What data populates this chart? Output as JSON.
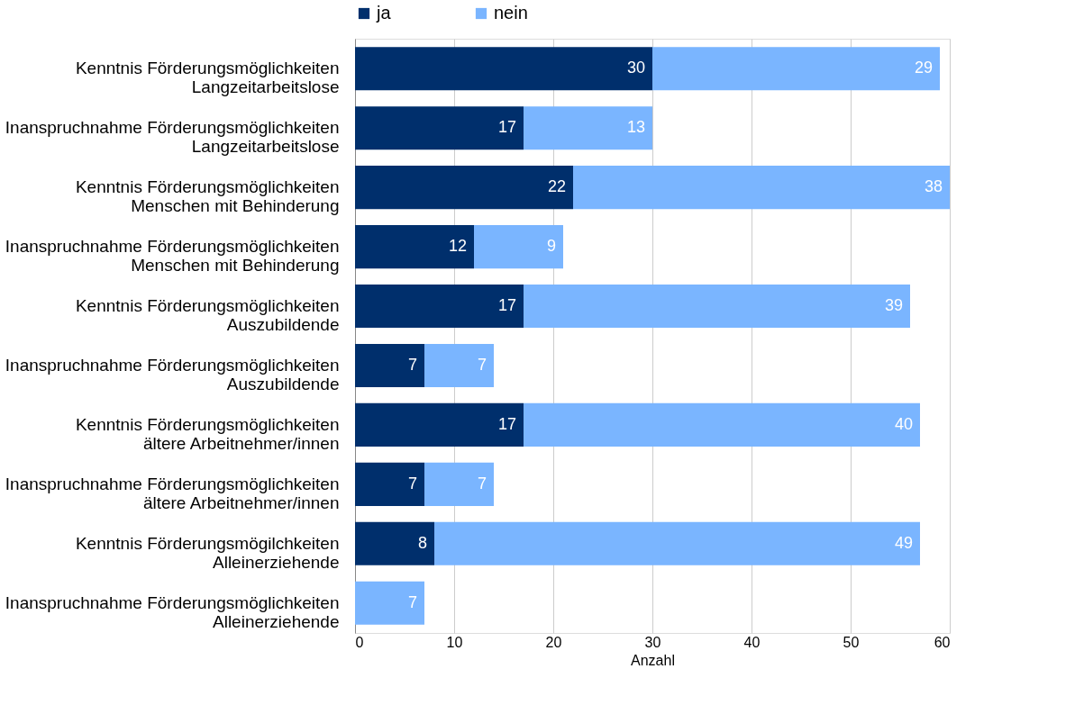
{
  "chart_data": {
    "type": "bar",
    "orientation": "horizontal",
    "stacked": true,
    "xlabel": "Anzahl",
    "categories": [
      "Kenntnis Förderungsmöglichkeiten\nLangzeitarbeitslose",
      "Inanspruchnahme Förderungsmöglichkeiten\nLangzeitarbeitslose",
      "Kenntnis Förderungsmöglichkeiten\nMenschen mit Behinderung",
      "Inanspruchnahme Förderungsmöglichkeiten\nMenschen mit Behinderung",
      "Kenntnis Förderungsmöglichkeiten\nAuszubildende",
      "Inanspruchnahme Förderungsmöglichkeiten\nAuszubildende",
      "Kenntnis  Förderungsmöglichkeiten\nältere Arbeitnehmer/innen",
      "Inanspruchnahme Förderungsmöglichkeiten\nältere Arbeitnehmer/innen",
      "Kenntnis Förderungsmögilchkeiten\nAlleinerziehende",
      "Inanspruchnahme Förderungsmöglichkeiten\nAlleinerziehende"
    ],
    "series": [
      {
        "name": "ja",
        "color": "#002f6c",
        "values": [
          30,
          17,
          22,
          12,
          17,
          7,
          17,
          7,
          8,
          null
        ]
      },
      {
        "name": "nein",
        "color": "#7ab5ff",
        "values": [
          29,
          13,
          38,
          9,
          39,
          7,
          40,
          7,
          49,
          7
        ]
      }
    ],
    "xlim": [
      0,
      60
    ],
    "xticks": [
      0,
      10,
      20,
      30,
      40,
      50,
      60
    ],
    "grid": "x",
    "legend": "top",
    "data_labels": true
  }
}
